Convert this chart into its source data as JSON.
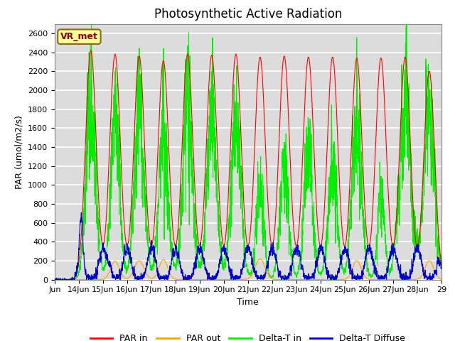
{
  "title": "Photosynthetic Active Radiation",
  "ylabel": "PAR (umol/m2/s)",
  "xlabel": "Time",
  "annotation": "VR_met",
  "ylim": [
    0,
    2700
  ],
  "yticks": [
    0,
    200,
    400,
    600,
    800,
    1000,
    1200,
    1400,
    1600,
    1800,
    2000,
    2200,
    2400,
    2600
  ],
  "xtick_positions": [
    13,
    14,
    15,
    16,
    17,
    18,
    19,
    20,
    21,
    22,
    23,
    24,
    25,
    26,
    27,
    28,
    29
  ],
  "xtick_labels": [
    "Jun",
    "14Jun",
    "15Jun",
    "16Jun",
    "17Jun",
    "18Jun",
    "19Jun",
    "20Jun",
    "21Jun",
    "22Jun",
    "23Jun",
    "24Jun",
    "25Jun",
    "26Jun",
    "27Jun",
    "28Jun",
    "29"
  ],
  "colors": {
    "PAR in": "#FF0000",
    "PAR out": "#FFA500",
    "Delta-T in": "#00EE00",
    "Delta-T Diffuse": "#0000CC"
  },
  "background_color": "#DCDCDC",
  "grid_color": "#FFFFFF",
  "title_fontsize": 12,
  "label_fontsize": 9,
  "tick_fontsize": 8,
  "annotation_color": "#8B0000",
  "annotation_bg": "#FFFF99",
  "annotation_edge": "#8B6914"
}
